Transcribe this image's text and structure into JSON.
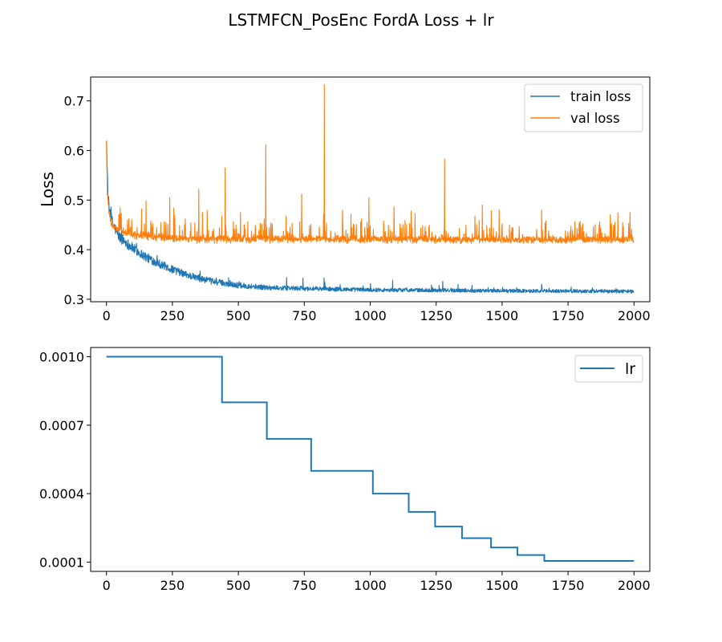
{
  "figure": {
    "title": "LSTMFCN_PosEnc FordA Loss + lr"
  },
  "chart_data": [
    {
      "type": "line",
      "title": "",
      "xlabel": "",
      "ylabel": "Loss",
      "xlim": [
        -60,
        2060
      ],
      "ylim": [
        0.295,
        0.748
      ],
      "x_ticks": [
        0,
        250,
        500,
        750,
        1000,
        1250,
        1500,
        1750,
        2000
      ],
      "x_tick_labels": [
        "0",
        "250",
        "500",
        "750",
        "1000",
        "1250",
        "1500",
        "1750",
        "2000"
      ],
      "y_ticks": [
        0.3,
        0.4,
        0.5,
        0.6,
        0.7
      ],
      "y_tick_labels": [
        "0.3",
        "0.4",
        "0.5",
        "0.6",
        "0.7"
      ],
      "grid": false,
      "legend": "top-right",
      "epochs": 2000,
      "series": [
        {
          "name": "train loss",
          "color": "#1f77b4",
          "trend": [
            [
              0,
              0.625
            ],
            [
              5,
              0.52
            ],
            [
              10,
              0.48
            ],
            [
              25,
              0.45
            ],
            [
              50,
              0.425
            ],
            [
              100,
              0.403
            ],
            [
              150,
              0.385
            ],
            [
              200,
              0.372
            ],
            [
              250,
              0.36
            ],
            [
              300,
              0.35
            ],
            [
              350,
              0.342
            ],
            [
              400,
              0.336
            ],
            [
              500,
              0.328
            ],
            [
              600,
              0.324
            ],
            [
              700,
              0.322
            ],
            [
              800,
              0.321
            ],
            [
              1000,
              0.319
            ],
            [
              1250,
              0.318
            ],
            [
              1500,
              0.317
            ],
            [
              2000,
              0.316
            ]
          ],
          "spikes": [
            [
              355,
              0.357
            ],
            [
              683,
              0.344
            ],
            [
              745,
              0.343
            ],
            [
              825,
              0.343
            ],
            [
              1085,
              0.338
            ],
            [
              1275,
              0.336
            ],
            [
              1650,
              0.33
            ]
          ]
        },
        {
          "name": "val loss",
          "color": "#ff7f0e",
          "trend": [
            [
              0,
              0.597
            ],
            [
              5,
              0.5
            ],
            [
              10,
              0.475
            ],
            [
              20,
              0.45
            ],
            [
              40,
              0.44
            ],
            [
              100,
              0.43
            ],
            [
              200,
              0.425
            ],
            [
              300,
              0.422
            ],
            [
              500,
              0.421
            ],
            [
              1000,
              0.421
            ],
            [
              1500,
              0.42
            ],
            [
              2000,
              0.421
            ]
          ],
          "spikes": [
            [
              3,
              0.51
            ],
            [
              50,
              0.47
            ],
            [
              150,
              0.498
            ],
            [
              240,
              0.505
            ],
            [
              350,
              0.522
            ],
            [
              450,
              0.565
            ],
            [
              508,
              0.475
            ],
            [
              604,
              0.612
            ],
            [
              740,
              0.512
            ],
            [
              826,
              0.733
            ],
            [
              895,
              0.48
            ],
            [
              995,
              0.505
            ],
            [
              1090,
              0.487
            ],
            [
              1155,
              0.478
            ],
            [
              1282,
              0.583
            ],
            [
              1425,
              0.49
            ],
            [
              1650,
              0.48
            ],
            [
              1985,
              0.475
            ]
          ]
        }
      ]
    },
    {
      "type": "line",
      "title": "",
      "xlabel": "",
      "ylabel": "",
      "xlim": [
        -60,
        2060
      ],
      "ylim": [
        5.95e-05,
        0.0010405
      ],
      "x_ticks": [
        0,
        250,
        500,
        750,
        1000,
        1250,
        1500,
        1750,
        2000
      ],
      "x_tick_labels": [
        "0",
        "250",
        "500",
        "750",
        "1000",
        "1250",
        "1500",
        "1750",
        "2000"
      ],
      "y_ticks": [
        0.0001,
        0.0004,
        0.0007,
        0.001
      ],
      "y_tick_labels": [
        "0.0001",
        "0.0004",
        "0.0007",
        "0.0010"
      ],
      "grid": false,
      "legend": "top-right",
      "series": [
        {
          "name": "lr",
          "color": "#1f77b4",
          "step": "post",
          "x": [
            0,
            438,
            608,
            776,
            1010,
            1146,
            1246,
            1348,
            1458,
            1558,
            1660,
            2000
          ],
          "y": [
            0.001,
            0.0008,
            0.00064,
            0.0005,
            0.0004,
            0.00032,
            0.000256,
            0.000205,
            0.000164,
            0.000131,
            0.000105,
            0.000105
          ]
        }
      ]
    }
  ]
}
